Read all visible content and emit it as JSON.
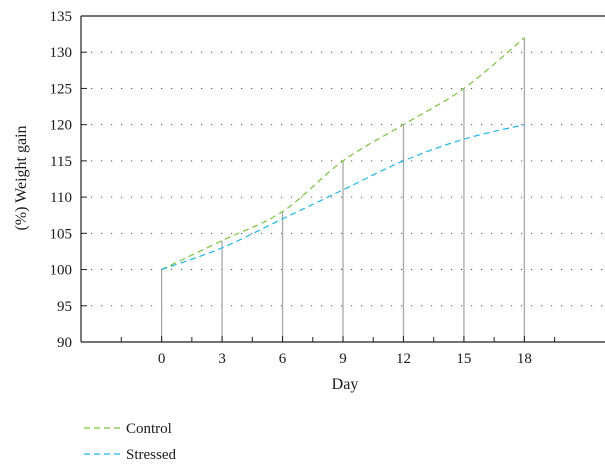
{
  "chart_data": {
    "type": "line",
    "xlabel": "Day",
    "ylabel": "(%) Weight gain",
    "xlim": [
      -4,
      22
    ],
    "ylim": [
      90,
      135
    ],
    "xticks": [
      0,
      3,
      6,
      9,
      12,
      15,
      18
    ],
    "yticks": [
      90,
      95,
      100,
      105,
      110,
      115,
      120,
      125,
      130,
      135
    ],
    "grid": "dotted horizontal",
    "legend_position": "bottom-left",
    "x": [
      0,
      3,
      6,
      9,
      12,
      15,
      18
    ],
    "series": [
      {
        "name": "Control",
        "color": "#7cc242",
        "values": [
          100,
          104,
          108,
          115,
          120,
          125,
          132
        ]
      },
      {
        "name": "Stressed",
        "color": "#1fb5e6",
        "values": [
          100,
          103,
          107,
          111,
          115,
          118,
          120
        ]
      }
    ]
  }
}
